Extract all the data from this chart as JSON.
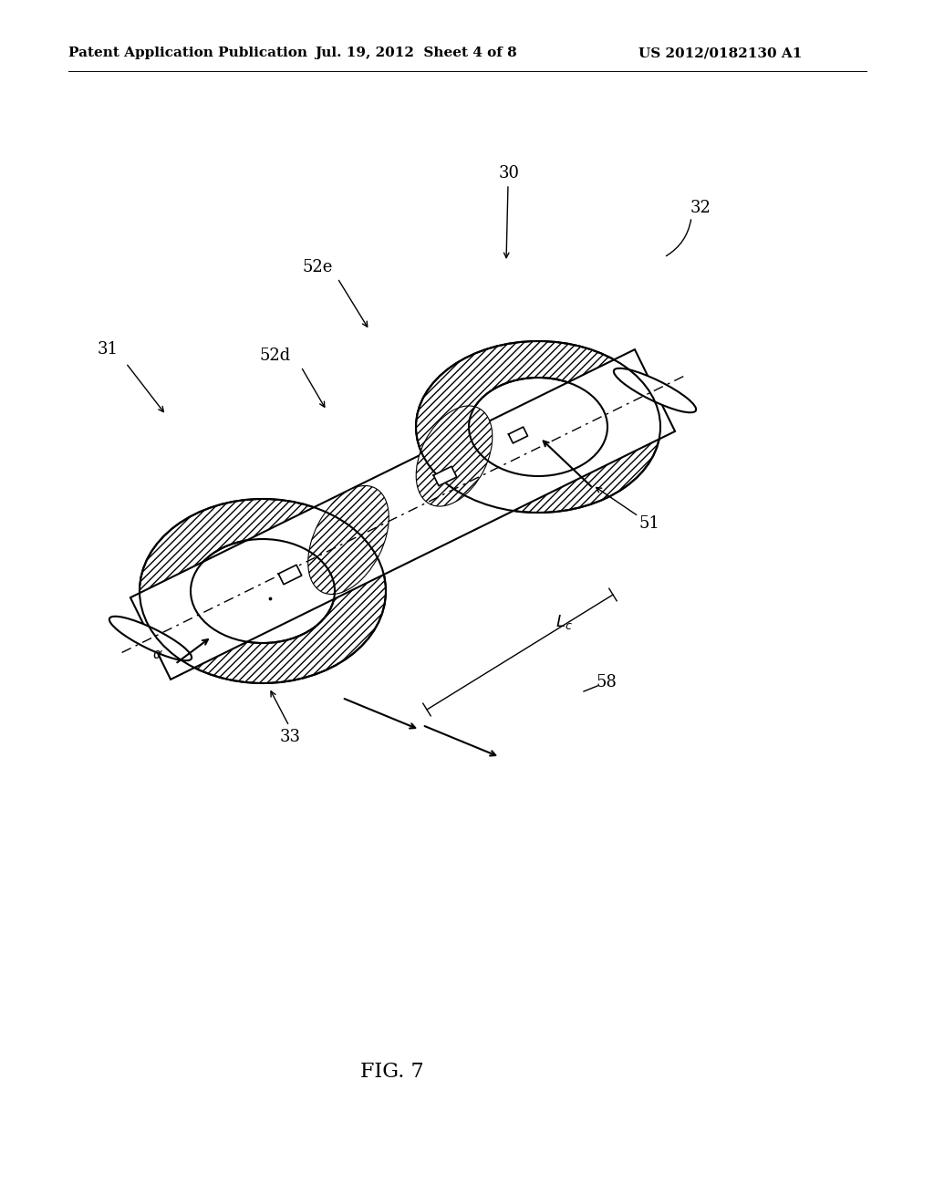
{
  "header_left": "Patent Application Publication",
  "header_center": "Jul. 19, 2012  Sheet 4 of 8",
  "header_right": "US 2012/0182130 A1",
  "figure_label": "FIG. 7",
  "background_color": "#ffffff",
  "line_color": "#000000",
  "header_fontsize": 11,
  "label_fontsize": 13,
  "fig_label_fontsize": 16
}
